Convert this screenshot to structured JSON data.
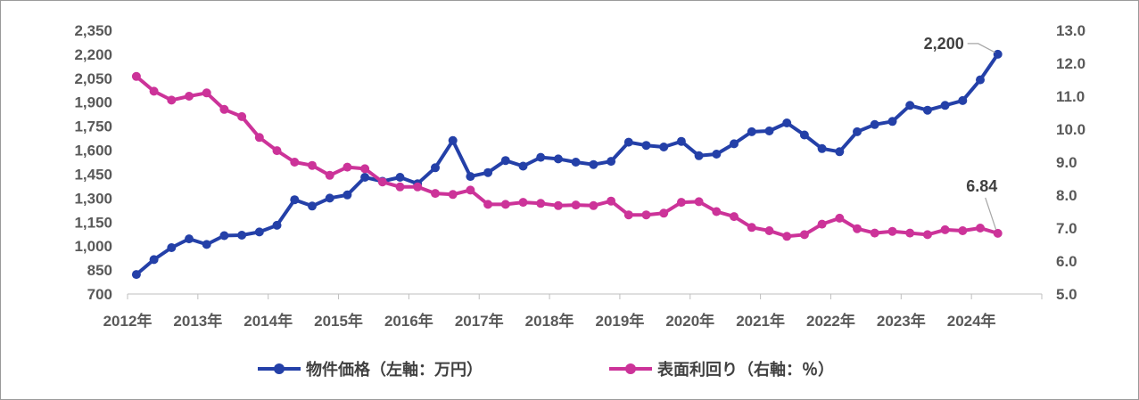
{
  "chart_data": {
    "type": "line",
    "title": "",
    "xlabel": "",
    "x_tick_labels": [
      "2012年",
      "2013年",
      "2014年",
      "2015年",
      "2016年",
      "2017年",
      "2018年",
      "2019年",
      "2020年",
      "2021年",
      "2022年",
      "2023年",
      "2024年"
    ],
    "y_left": {
      "min": 700,
      "max": 2350,
      "ticks": [
        700,
        850,
        "1,000",
        "1,150",
        "1,300",
        "1,450",
        "1,600",
        "1,750",
        "1,900",
        "2,050",
        "2,200",
        "2,350"
      ]
    },
    "y_right": {
      "min": 5.0,
      "max": 13.0,
      "ticks": [
        "5.0",
        "6.0",
        "7.0",
        "8.0",
        "9.0",
        "10.0",
        "11.0",
        "12.0",
        "13.0"
      ]
    },
    "gridlines": false,
    "legend_position": "bottom",
    "series": [
      {
        "name": "物件価格（左軸：万円）",
        "axis": "left",
        "color": "#2440a8",
        "x_start_year": 2012,
        "points_per_year": 4,
        "values": [
          822,
          915,
          990,
          1045,
          1010,
          1065,
          1068,
          1088,
          1130,
          1290,
          1250,
          1300,
          1320,
          1430,
          1405,
          1430,
          1390,
          1490,
          1660,
          1435,
          1460,
          1535,
          1500,
          1555,
          1545,
          1525,
          1510,
          1530,
          1650,
          1630,
          1620,
          1655,
          1565,
          1575,
          1640,
          1715,
          1720,
          1770,
          1695,
          1610,
          1590,
          1715,
          1760,
          1780,
          1880,
          1850,
          1880,
          1910,
          2040,
          2200
        ]
      },
      {
        "name": "表面利回り（右軸：％）",
        "axis": "right",
        "color": "#cc3399",
        "x_start_year": 2012,
        "points_per_year": 4,
        "values": [
          11.6,
          11.15,
          10.88,
          11.0,
          11.1,
          10.6,
          10.38,
          9.75,
          9.35,
          9.0,
          8.9,
          8.6,
          8.85,
          8.8,
          8.4,
          8.25,
          8.25,
          8.05,
          8.02,
          8.15,
          7.72,
          7.72,
          7.78,
          7.75,
          7.68,
          7.7,
          7.68,
          7.82,
          7.4,
          7.4,
          7.45,
          7.78,
          7.8,
          7.5,
          7.35,
          7.02,
          6.92,
          6.75,
          6.8,
          7.12,
          7.3,
          6.98,
          6.85,
          6.9,
          6.85,
          6.8,
          6.95,
          6.92,
          7.0,
          6.84
        ]
      }
    ],
    "annotations": [
      {
        "series": 0,
        "label": "2,200"
      },
      {
        "series": 1,
        "label": "6.84"
      }
    ]
  }
}
